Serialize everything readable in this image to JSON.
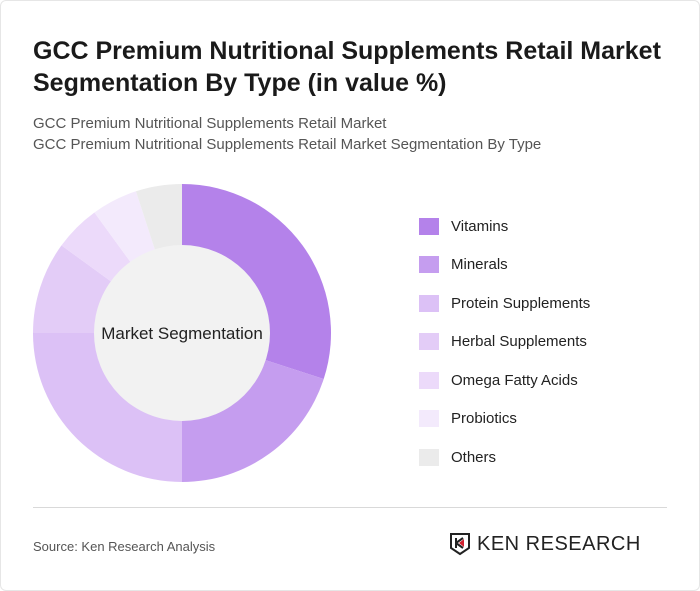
{
  "title": "GCC Premium Nutritional Supplements Retail Market Segmentation By Type (in value %)",
  "subtitle1": "GCC Premium Nutritional Supplements Retail Market",
  "subtitle2": "GCC Premium Nutritional Supplements Retail Market Segmentation By Type",
  "chart_data": {
    "type": "pie",
    "variant": "donut",
    "center_label": "Market Segmentation",
    "categories": [
      "Vitamins",
      "Minerals",
      "Protein Supplements",
      "Herbal Supplements",
      "Omega Fatty Acids",
      "Probiotics",
      "Others"
    ],
    "values": [
      30,
      20,
      25,
      10,
      5,
      5,
      5
    ],
    "colors": [
      "#b482ea",
      "#c59def",
      "#dcc1f6",
      "#e3ccf7",
      "#ecdafa",
      "#f3eafc",
      "#ebebeb"
    ],
    "legend_position": "right"
  },
  "source": "Source: Ken Research Analysis",
  "logo_text": "KEN RESEARCH"
}
